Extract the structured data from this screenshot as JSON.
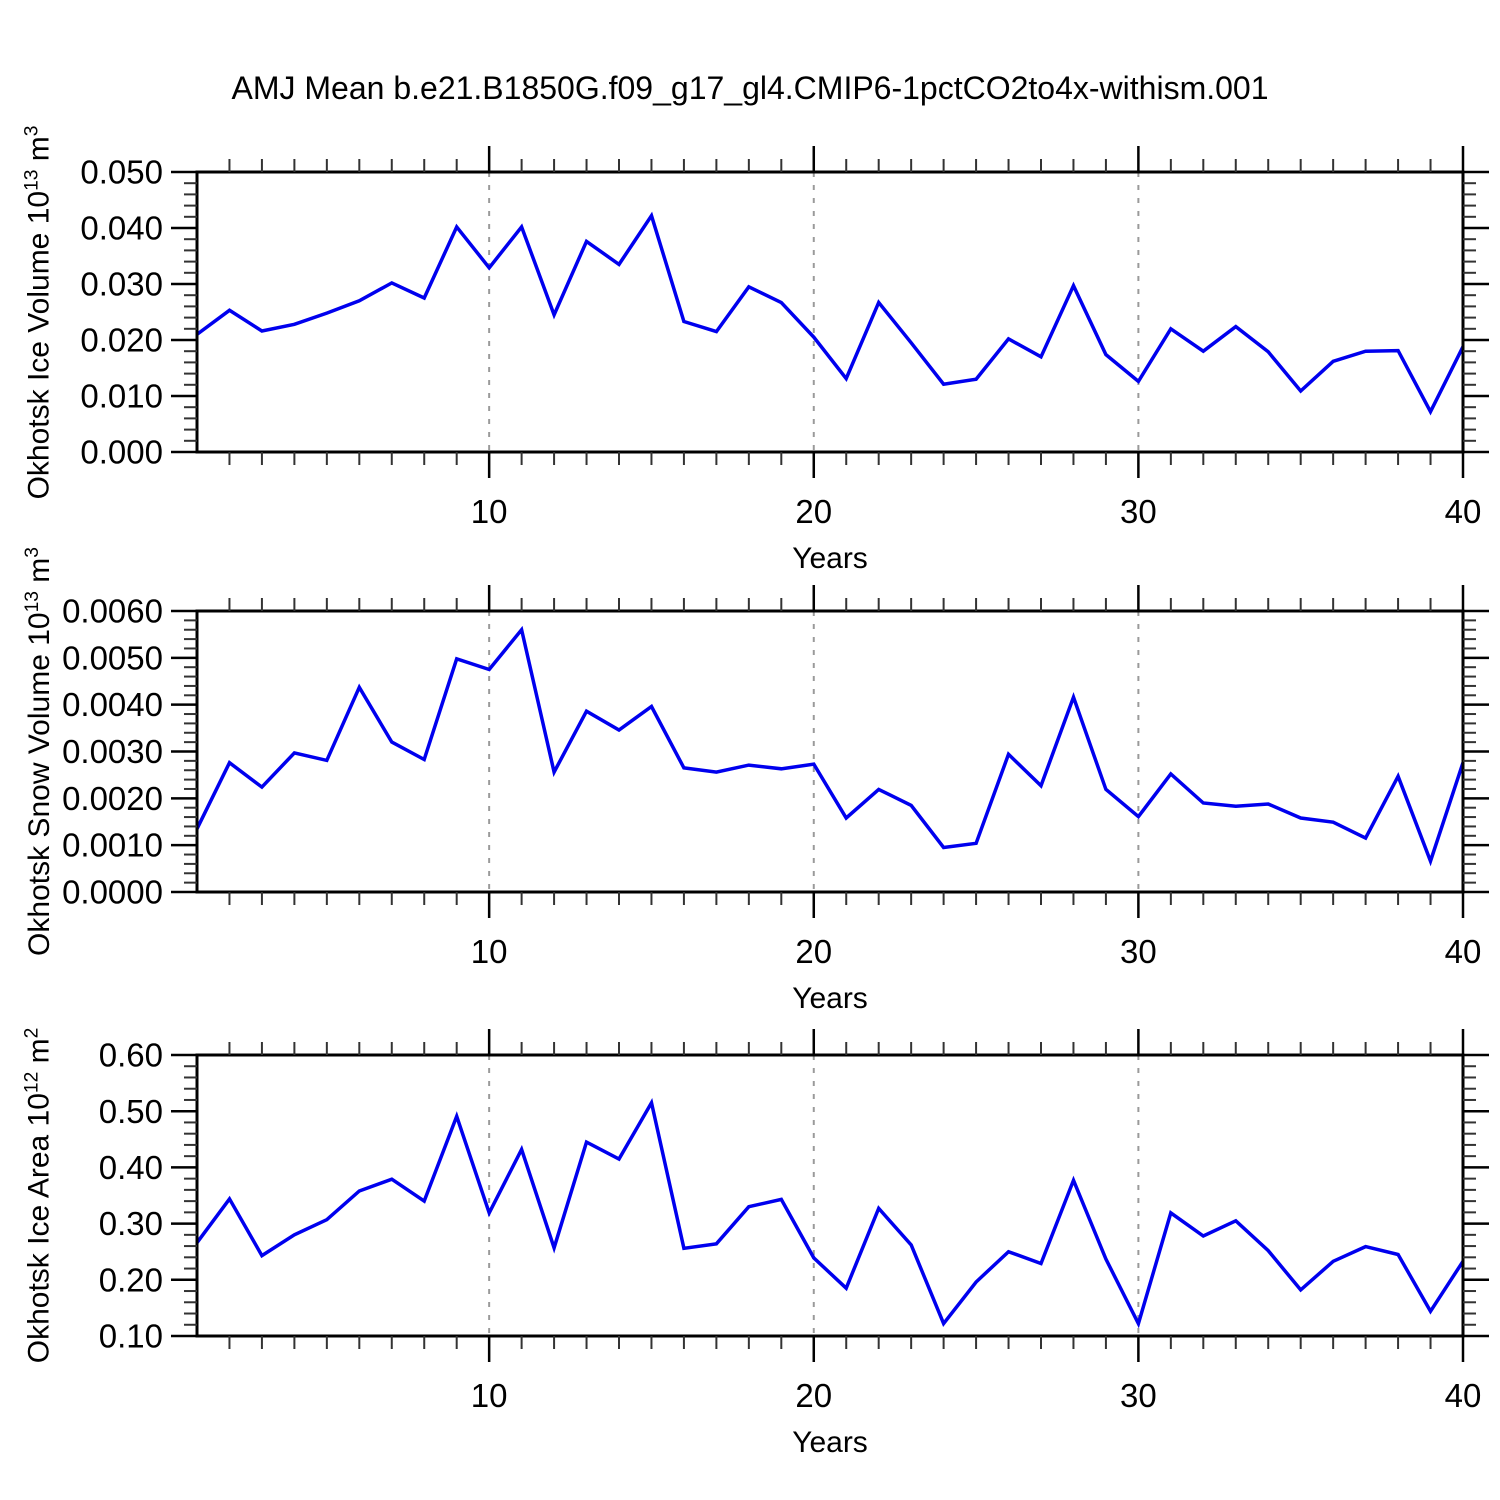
{
  "title": "AMJ Mean b.e21.B1850G.f09_g17_gl4.CMIP6-1pctCO2to4x-withism.001",
  "colors": {
    "line": "#0000ee",
    "axis": "#000000",
    "minor_tick": "#333333",
    "gridline": "#9a9a9a",
    "background": "#ffffff"
  },
  "chart_data": {
    "type": "line",
    "legend": "none",
    "grid": "dashed vertical lines at years 10, 20, 30",
    "x": {
      "label": "Years",
      "years": [
        1,
        2,
        3,
        4,
        5,
        6,
        7,
        8,
        9,
        10,
        11,
        12,
        13,
        14,
        15,
        16,
        17,
        18,
        19,
        20,
        21,
        22,
        23,
        24,
        25,
        26,
        27,
        28,
        29,
        30,
        31,
        32,
        33,
        34,
        35,
        36,
        37,
        38,
        39,
        40
      ],
      "xlim": [
        1,
        40
      ],
      "major_ticks": [
        "10",
        "20",
        "30",
        "40"
      ],
      "major_tick_years": [
        10,
        20,
        30,
        40
      ],
      "dashed_gridline_years": [
        10,
        20,
        30
      ],
      "minor_tick_step": 1
    },
    "panels": [
      {
        "name": "ice-volume",
        "ylabel": "Okhotsk Ice Volume 10^13 m^3",
        "ylabel_parts": [
          [
            "t",
            "Okhotsk Ice Volume 10"
          ],
          [
            "s",
            "13"
          ],
          [
            "t",
            " m"
          ],
          [
            "s",
            "3"
          ]
        ],
        "ylim": [
          0.0,
          0.05
        ],
        "yticks": [
          "0.000",
          "0.010",
          "0.020",
          "0.030",
          "0.040",
          "0.050"
        ],
        "y_minor_step": 0.002,
        "values": [
          0.021,
          0.0253,
          0.0216,
          0.0228,
          0.0248,
          0.027,
          0.0302,
          0.0275,
          0.0402,
          0.0329,
          0.0402,
          0.0245,
          0.0376,
          0.0335,
          0.0422,
          0.0233,
          0.0215,
          0.0295,
          0.0267,
          0.0205,
          0.0131,
          0.0267,
          0.0195,
          0.0121,
          0.013,
          0.0202,
          0.017,
          0.0297,
          0.0174,
          0.0126,
          0.022,
          0.018,
          0.0224,
          0.0179,
          0.0109,
          0.0162,
          0.018,
          0.0181,
          0.0072,
          0.0188
        ]
      },
      {
        "name": "snow-volume",
        "ylabel": "Okhotsk Snow Volume 10^13 m^3",
        "ylabel_parts": [
          [
            "t",
            "Okhotsk Snow Volume 10"
          ],
          [
            "s",
            "13"
          ],
          [
            "t",
            " m"
          ],
          [
            "s",
            "3"
          ]
        ],
        "ylim": [
          0.0,
          0.006
        ],
        "yticks": [
          "0.0000",
          "0.0010",
          "0.0020",
          "0.0030",
          "0.0040",
          "0.0050",
          "0.0060"
        ],
        "y_minor_step": 0.0002,
        "values": [
          0.00135,
          0.00276,
          0.00224,
          0.00297,
          0.00281,
          0.00437,
          0.0032,
          0.00283,
          0.00498,
          0.00475,
          0.0056,
          0.00256,
          0.00386,
          0.00346,
          0.00396,
          0.00265,
          0.00256,
          0.00271,
          0.00263,
          0.00273,
          0.00158,
          0.00219,
          0.00185,
          0.00095,
          0.00104,
          0.00294,
          0.00227,
          0.00416,
          0.00219,
          0.00161,
          0.00252,
          0.0019,
          0.00183,
          0.00188,
          0.00158,
          0.00149,
          0.00115,
          0.00247,
          0.00066,
          0.00276
        ]
      },
      {
        "name": "ice-area",
        "ylabel": "Okhotsk Ice Area 10^12 m^2",
        "ylabel_parts": [
          [
            "t",
            "Okhotsk Ice Area 10"
          ],
          [
            "s",
            "12"
          ],
          [
            "t",
            " m"
          ],
          [
            "s",
            "2"
          ]
        ],
        "ylim": [
          0.1,
          0.6
        ],
        "yticks": [
          "0.10",
          "0.20",
          "0.30",
          "0.40",
          "0.50",
          "0.60"
        ],
        "y_minor_step": 0.02,
        "values": [
          0.266,
          0.344,
          0.243,
          0.28,
          0.307,
          0.358,
          0.379,
          0.34,
          0.491,
          0.319,
          0.432,
          0.257,
          0.445,
          0.415,
          0.515,
          0.256,
          0.264,
          0.33,
          0.343,
          0.239,
          0.185,
          0.327,
          0.262,
          0.122,
          0.196,
          0.25,
          0.229,
          0.377,
          0.237,
          0.122,
          0.319,
          0.278,
          0.305,
          0.252,
          0.182,
          0.233,
          0.259,
          0.245,
          0.144,
          0.233
        ]
      }
    ]
  }
}
